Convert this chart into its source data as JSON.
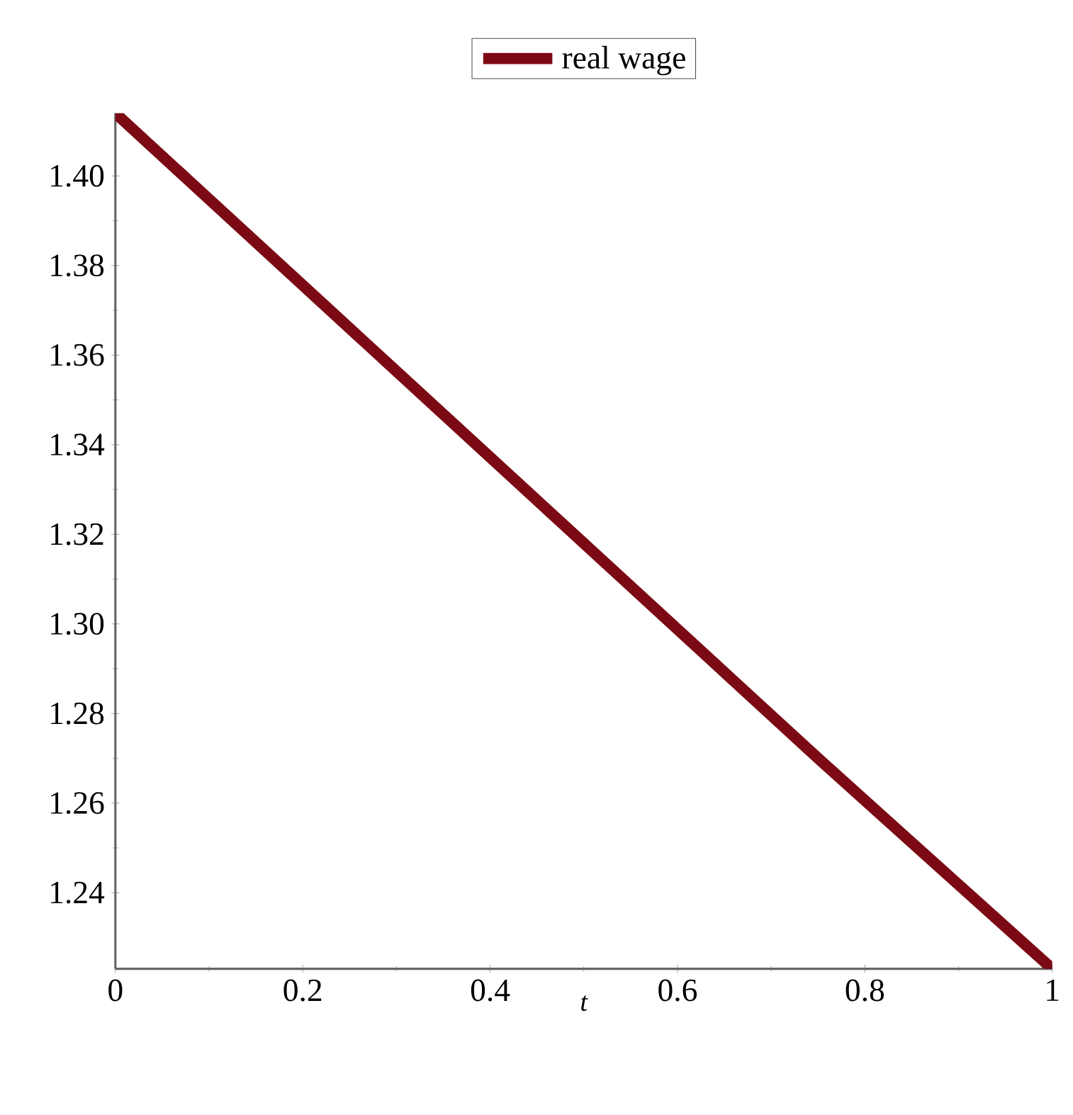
{
  "chart_data": {
    "type": "line",
    "xlabel": "t",
    "x": [
      0,
      0.25,
      0.5,
      0.75,
      1
    ],
    "series": [
      {
        "name": "real wage",
        "color": "#7b0a14",
        "values": [
          1.414,
          1.366,
          1.318,
          1.27,
          1.223
        ]
      }
    ],
    "xlim": [
      0,
      1
    ],
    "ylim": [
      1.223,
      1.414
    ],
    "xticks": [
      0,
      0.2,
      0.4,
      0.6,
      0.8,
      1
    ],
    "yticks": [
      {
        "value": 1.24,
        "label": "1.24"
      },
      {
        "value": 1.26,
        "label": "1.26"
      },
      {
        "value": 1.28,
        "label": "1.28"
      },
      {
        "value": 1.3,
        "label": "1.30"
      },
      {
        "value": 1.32,
        "label": "1.32"
      },
      {
        "value": 1.34,
        "label": "1.34"
      },
      {
        "value": 1.36,
        "label": "1.36"
      },
      {
        "value": 1.38,
        "label": "1.38"
      },
      {
        "value": 1.4,
        "label": "1.40"
      }
    ],
    "legend": "top",
    "grid": false,
    "line_style": "solid",
    "marker": "none"
  }
}
